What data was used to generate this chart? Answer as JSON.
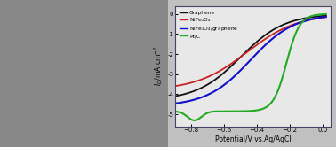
{
  "xlabel": "Potential/V vs.Ag/AgCl",
  "ylabel": "$I_D$/mA cm$^{-2}$",
  "xlim": [
    -0.9,
    0.05
  ],
  "ylim": [
    -5.6,
    0.4
  ],
  "xticks": [
    -0.8,
    -0.6,
    -0.4,
    -0.2,
    0.0
  ],
  "ytick_vals": [
    0,
    -1,
    -2,
    -3,
    -4,
    -5
  ],
  "ytick_labels": [
    "0",
    "-1",
    "-2",
    "-3",
    "-4",
    "-5"
  ],
  "background_color": "#e8e8e8",
  "plot_bg": "#e8e8e8",
  "series": [
    {
      "name": "Graphene",
      "color": "#111111",
      "linewidth": 1.3
    },
    {
      "name": "NiFe₂O₄",
      "color": "#cc2222",
      "linewidth": 1.3
    },
    {
      "name": "NiFe₂O₄/graphene",
      "color": "#1111cc",
      "linewidth": 1.5
    },
    {
      "name": "Pt/C",
      "color": "#22aa22",
      "linewidth": 1.5
    }
  ]
}
